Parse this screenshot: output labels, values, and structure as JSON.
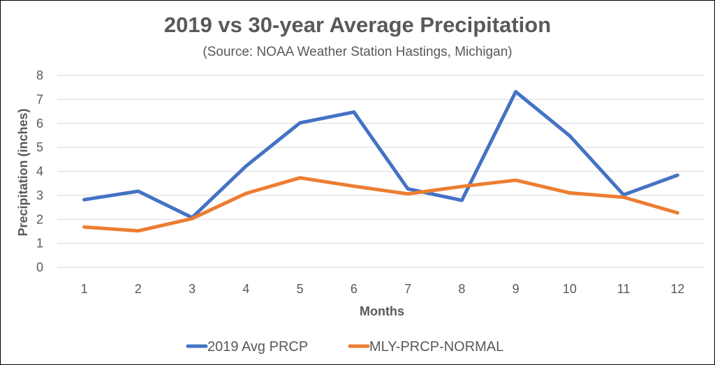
{
  "chart_data": {
    "type": "line",
    "title": "2019 vs 30-year Average Precipitation",
    "subtitle": "(Source: NOAA Weather Station Hastings, Michigan)",
    "xlabel": "Months",
    "ylabel": "Precipitation (inches)",
    "x": [
      1,
      2,
      3,
      4,
      5,
      6,
      7,
      8,
      9,
      10,
      11,
      12
    ],
    "ylim": [
      0,
      8
    ],
    "yticks": [
      0,
      1,
      2,
      3,
      4,
      5,
      6,
      7,
      8
    ],
    "grid": true,
    "legend_position": "bottom",
    "series": [
      {
        "name": "2019 Avg PRCP",
        "color": "#4472c4",
        "values": [
          2.82,
          3.17,
          2.07,
          4.22,
          6.02,
          6.47,
          3.27,
          2.79,
          7.32,
          5.48,
          3.02,
          3.84
        ]
      },
      {
        "name": "MLY-PRCP-NORMAL",
        "color": "#ed7d31",
        "values": [
          1.68,
          1.52,
          2.03,
          3.08,
          3.73,
          3.38,
          3.06,
          3.37,
          3.63,
          3.1,
          2.92,
          2.27
        ]
      }
    ]
  }
}
